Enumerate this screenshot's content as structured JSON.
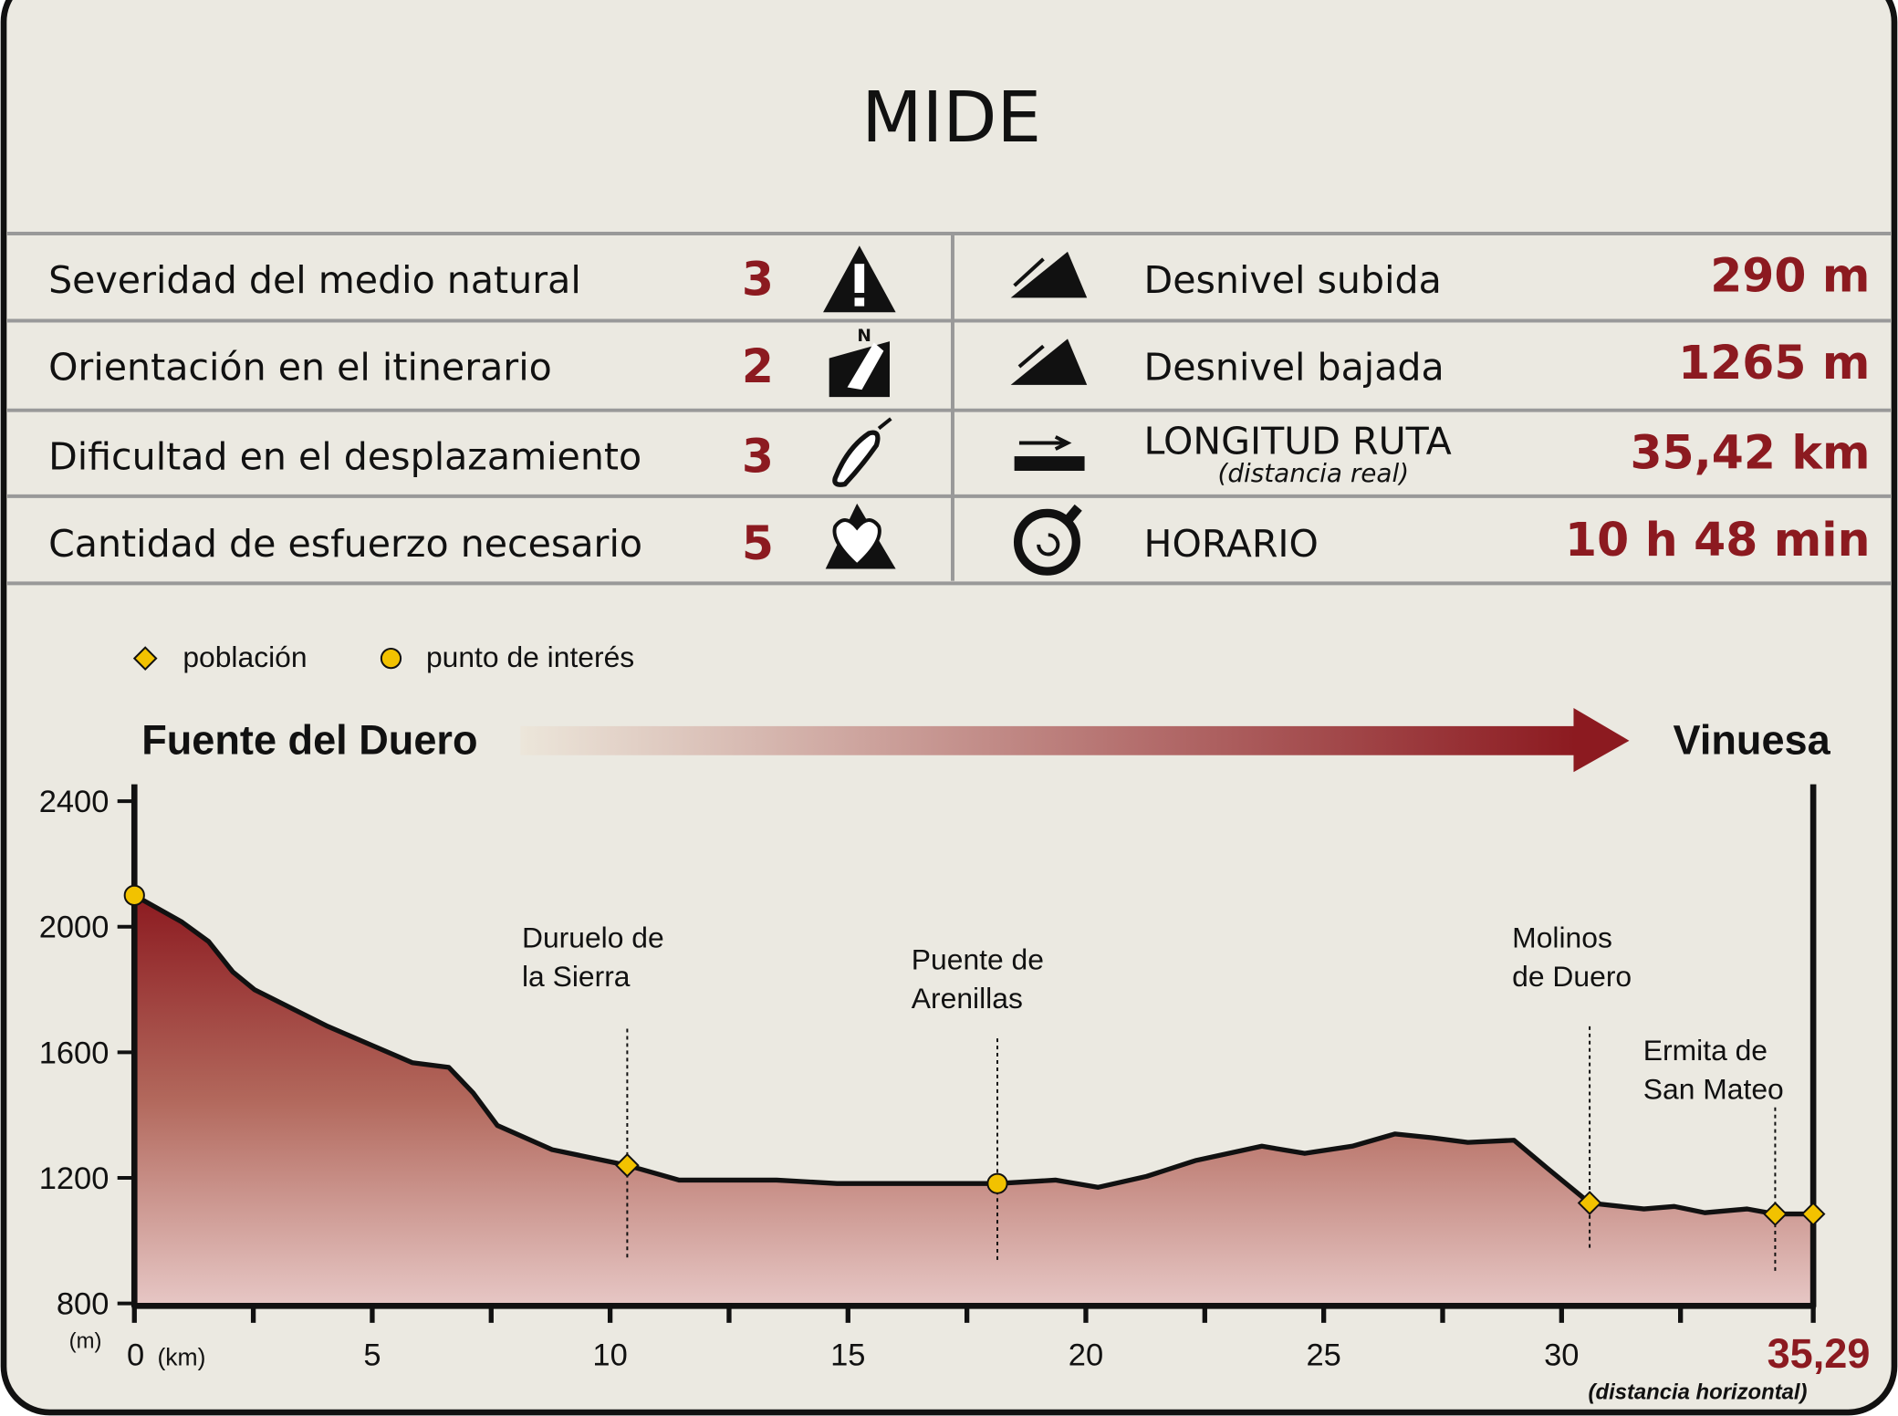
{
  "header": {
    "title": "MIDE"
  },
  "table": {
    "rows": [
      {
        "label": "Severidad del medio natural",
        "value": "3"
      },
      {
        "label": "Orientación en el itinerario",
        "value": "2"
      },
      {
        "label": "Dificultad en el desplazamiento",
        "value": "3"
      },
      {
        "label": "Cantidad de esfuerzo necesario",
        "value": "5"
      }
    ],
    "right_rows": [
      {
        "label": "Desnivel subida",
        "value": "290 m"
      },
      {
        "label": "Desnivel bajada",
        "value": "1265 m"
      },
      {
        "label": "LONGITUD RUTA",
        "sublabel": "(distancia real)",
        "value": "35,42 km"
      },
      {
        "label": "HORARIO",
        "value": "10 h 48 min"
      }
    ]
  },
  "chart_data": {
    "type": "area",
    "start": "Fuente del Duero",
    "end": "Vinuesa",
    "x": [
      0,
      1.0,
      1.56,
      2.07,
      2.53,
      4.06,
      5.84,
      6.61,
      7.12,
      7.63,
      8.78,
      10.36,
      11.45,
      13.5,
      14.77,
      18.14,
      19.36,
      20.26,
      21.28,
      22.3,
      23.7,
      24.6,
      25.6,
      26.5,
      27.27,
      28.03,
      29.0,
      29.69,
      30.59,
      31.73,
      32.37,
      33.01,
      33.9,
      34.49,
      35.29
    ],
    "values": [
      2100,
      2015,
      1953,
      1856,
      1799,
      1683,
      1567,
      1552,
      1471,
      1367,
      1290,
      1240,
      1193,
      1193,
      1182,
      1182,
      1193,
      1170,
      1205,
      1255,
      1301,
      1278,
      1301,
      1340,
      1328,
      1313,
      1320,
      1232,
      1120,
      1101,
      1109,
      1089,
      1101,
      1085,
      1085
    ],
    "points": [
      {
        "name": "población",
        "shape": "diamond",
        "color": "#f2c200",
        "x": [
          10.36,
          30.59,
          34.49,
          35.29
        ],
        "values": [
          1240,
          1120,
          1085,
          1085
        ]
      },
      {
        "name": "punto de interés",
        "shape": "circle",
        "color": "#f2c200",
        "x": [
          0,
          18.14
        ],
        "values": [
          2100,
          1182
        ]
      }
    ],
    "annotations": [
      {
        "text": [
          "Duruelo de",
          "la Sierra"
        ],
        "x": 10.36
      },
      {
        "text": [
          "Puente de",
          "Arenillas"
        ],
        "x": 18.14
      },
      {
        "text": [
          "Molinos",
          "de Duero"
        ],
        "x": 30.59
      },
      {
        "text": [
          "Ermita de",
          "San Mateo"
        ],
        "x": 34.49
      }
    ],
    "xlim": [
      0,
      35.29
    ],
    "xticks": [
      0,
      5,
      10,
      15,
      20,
      25,
      30,
      {
        "value": 35.29,
        "label": "35,29"
      }
    ],
    "minor_xticks": [
      2.5,
      7.5,
      12.5,
      17.5,
      22.5,
      27.5,
      32.5
    ],
    "ylim": [
      800,
      2400
    ],
    "yticks": [
      800,
      1200,
      1600,
      2000,
      2400
    ],
    "y_unit": "(m)",
    "x_unit": "(km)",
    "x_note": "(distancia horizontal)"
  }
}
